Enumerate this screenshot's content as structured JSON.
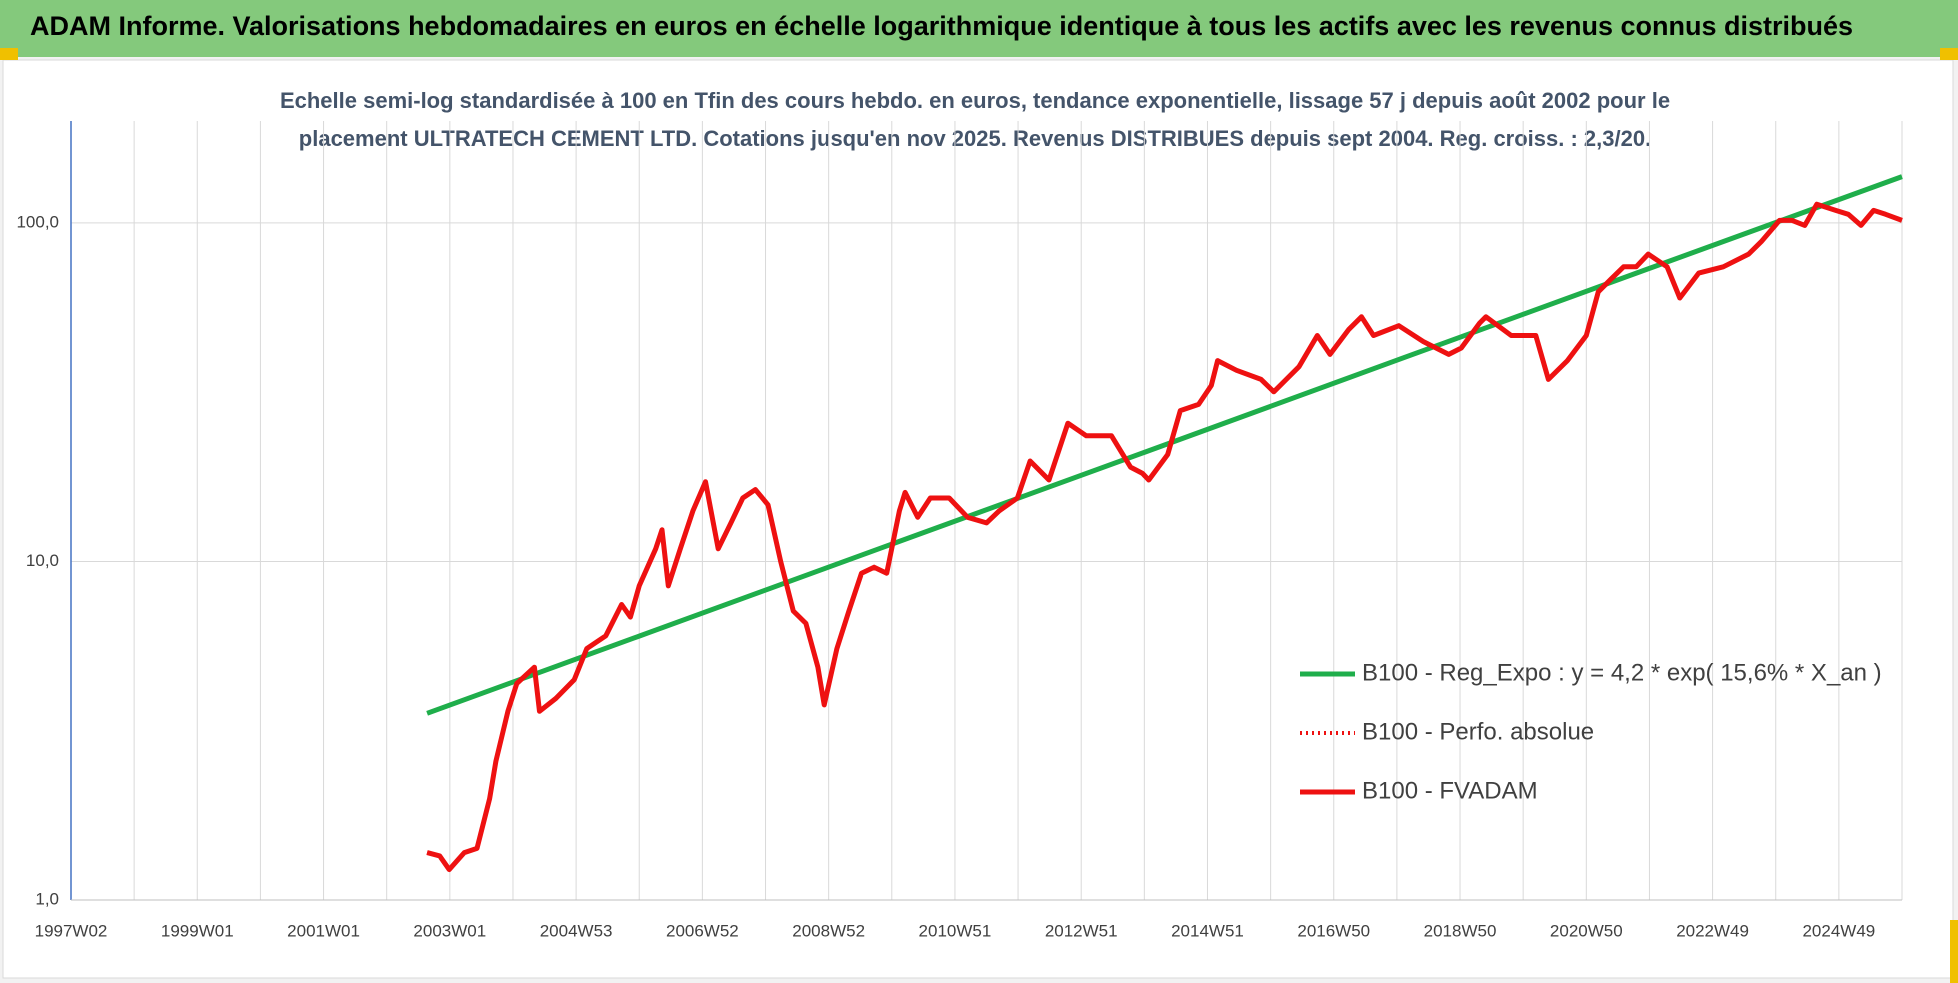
{
  "header": {
    "title": "ADAM Informe. Valorisations hebdomadaires en euros en échelle logarithmique identique à tous les actifs avec les revenus connus distribués"
  },
  "chart_data": {
    "type": "line",
    "subtitle": [
      "Echelle semi-log standardisée à 100 en Tfin des cours hebdo. en euros, tendance exponentielle, lissage 57 j depuis août 2002 pour le",
      "placement ULTRATECH CEMENT LTD. Cotations jusqu'en nov 2025. Revenus DISTRIBUES depuis sept 2004. Reg. croiss. : 2,3/20."
    ],
    "log_scale": true,
    "grid": true,
    "legend": "right",
    "xlim": [
      1997,
      2026
    ],
    "ylim": [
      1,
      200
    ],
    "xticks": [
      {
        "value": 1997,
        "label": "1997W02"
      },
      {
        "value": 1999,
        "label": "1999W01"
      },
      {
        "value": 2001,
        "label": "2001W01"
      },
      {
        "value": 2003,
        "label": "2003W01"
      },
      {
        "value": 2005,
        "label": "2004W53"
      },
      {
        "value": 2007,
        "label": "2006W52"
      },
      {
        "value": 2009,
        "label": "2008W52"
      },
      {
        "value": 2011,
        "label": "2010W51"
      },
      {
        "value": 2013,
        "label": "2012W51"
      },
      {
        "value": 2015,
        "label": "2014W51"
      },
      {
        "value": 2017,
        "label": "2016W50"
      },
      {
        "value": 2019,
        "label": "2018W50"
      },
      {
        "value": 2021,
        "label": "2020W50"
      },
      {
        "value": 2023,
        "label": "2022W49"
      },
      {
        "value": 2025,
        "label": "2024W49"
      }
    ],
    "x_gridlines": [
      1998,
      2000,
      2002,
      2004,
      2006,
      2008,
      2010,
      2012,
      2014,
      2016,
      2018,
      2020,
      2022,
      2024,
      2026
    ],
    "yticks": [
      {
        "value": 1,
        "label": "1,0"
      },
      {
        "value": 10,
        "label": "10,0"
      },
      {
        "value": 100,
        "label": "100,0"
      }
    ],
    "series": [
      {
        "name": "B100 - Reg_Expo : y = 4,2 * exp( 15,6% *  X_an )",
        "color": "#1fae4b",
        "style": "solid",
        "x": [
          2002.64,
          2006,
          2010,
          2014,
          2018,
          2022,
          2026
        ],
        "values": [
          3.56,
          6.02,
          11.25,
          21.0,
          39.3,
          73.4,
          137
        ]
      },
      {
        "name": "B100 - Perfo. absolue",
        "color": "#ee1111",
        "style": "dotted",
        "x": [
          2002.64,
          2002.84,
          2002.99,
          2003.23,
          2003.43,
          2003.63,
          2003.73,
          2003.92,
          2004.06,
          2004.34,
          2004.42,
          2004.68,
          2004.97,
          2005.17,
          2005.47,
          2005.72,
          2005.86,
          2006.0,
          2006.26,
          2006.36,
          2006.46,
          2006.65,
          2006.85,
          2007.05,
          2007.25,
          2007.45,
          2007.64,
          2007.84,
          2008.04,
          2008.24,
          2008.44,
          2008.64,
          2008.83,
          2008.93,
          2009.13,
          2009.32,
          2009.52,
          2009.72,
          2009.92,
          2010.12,
          2010.21,
          2010.41,
          2010.61,
          2010.91,
          2011.2,
          2011.5,
          2011.7,
          2011.99,
          2012.19,
          2012.49,
          2012.79,
          2013.08,
          2013.48,
          2013.78,
          2013.97,
          2014.07,
          2014.37,
          2014.57,
          2014.86,
          2015.06,
          2015.16,
          2015.46,
          2015.85,
          2016.05,
          2016.45,
          2016.74,
          2016.94,
          2017.24,
          2017.44,
          2017.63,
          2018.03,
          2018.42,
          2018.82,
          2019.02,
          2019.31,
          2019.41,
          2019.81,
          2020.2,
          2020.4,
          2020.7,
          2021.0,
          2021.19,
          2021.39,
          2021.59,
          2021.79,
          2021.98,
          2022.28,
          2022.48,
          2022.78,
          2023.17,
          2023.57,
          2023.77,
          2024.06,
          2024.26,
          2024.46,
          2024.65,
          2024.95,
          2025.15,
          2025.35,
          2025.55,
          2025.74,
          2026.0
        ],
        "values": [
          1.38,
          1.35,
          1.23,
          1.38,
          1.42,
          1.99,
          2.57,
          3.61,
          4.36,
          4.87,
          3.61,
          3.94,
          4.47,
          5.53,
          6.03,
          7.46,
          6.85,
          8.47,
          10.9,
          12.4,
          8.47,
          10.9,
          14.1,
          17.2,
          10.9,
          12.97,
          15.4,
          16.3,
          14.7,
          10.0,
          7.14,
          6.56,
          4.87,
          3.77,
          5.53,
          7.14,
          9.23,
          9.62,
          9.23,
          14.1,
          16.0,
          13.5,
          15.4,
          15.4,
          13.5,
          13.0,
          14.1,
          15.4,
          19.8,
          17.4,
          25.6,
          23.5,
          23.5,
          19.0,
          18.2,
          17.4,
          20.7,
          27.9,
          29.1,
          33.1,
          39.2,
          36.7,
          34.5,
          31.7,
          37.6,
          46.5,
          40.9,
          48.5,
          52.8,
          46.5,
          49.7,
          44.6,
          40.9,
          42.7,
          50.6,
          52.8,
          46.5,
          46.5,
          34.5,
          39.2,
          46.5,
          62.6,
          68.2,
          74.2,
          74.2,
          80.9,
          74.2,
          60.0,
          71.1,
          74.2,
          80.9,
          88.0,
          101.7,
          101.7,
          98.3,
          113.6,
          108.9,
          106,
          98.3,
          108.9,
          106,
          101.7
        ]
      },
      {
        "name": "B100 - FVADAM",
        "color": "#ee1111",
        "style": "solid",
        "x": [
          2002.64,
          2002.84,
          2002.99,
          2003.23,
          2003.43,
          2003.63,
          2003.73,
          2003.92,
          2004.06,
          2004.34,
          2004.42,
          2004.68,
          2004.97,
          2005.17,
          2005.47,
          2005.72,
          2005.86,
          2006.0,
          2006.26,
          2006.36,
          2006.46,
          2006.65,
          2006.85,
          2007.05,
          2007.25,
          2007.45,
          2007.64,
          2007.84,
          2008.04,
          2008.24,
          2008.44,
          2008.64,
          2008.83,
          2008.93,
          2009.13,
          2009.32,
          2009.52,
          2009.72,
          2009.92,
          2010.12,
          2010.21,
          2010.41,
          2010.61,
          2010.91,
          2011.2,
          2011.5,
          2011.7,
          2011.99,
          2012.19,
          2012.49,
          2012.79,
          2013.08,
          2013.48,
          2013.78,
          2013.97,
          2014.07,
          2014.37,
          2014.57,
          2014.86,
          2015.06,
          2015.16,
          2015.46,
          2015.85,
          2016.05,
          2016.45,
          2016.74,
          2016.94,
          2017.24,
          2017.44,
          2017.63,
          2018.03,
          2018.42,
          2018.82,
          2019.02,
          2019.31,
          2019.41,
          2019.81,
          2020.2,
          2020.4,
          2020.7,
          2021.0,
          2021.19,
          2021.39,
          2021.59,
          2021.79,
          2021.98,
          2022.28,
          2022.48,
          2022.78,
          2023.17,
          2023.57,
          2023.77,
          2024.06,
          2024.26,
          2024.46,
          2024.65,
          2024.95,
          2025.15,
          2025.35,
          2025.55,
          2025.74,
          2026.0
        ],
        "values": [
          1.38,
          1.35,
          1.23,
          1.38,
          1.42,
          1.99,
          2.57,
          3.61,
          4.36,
          4.87,
          3.61,
          3.94,
          4.47,
          5.53,
          6.03,
          7.46,
          6.85,
          8.47,
          10.9,
          12.4,
          8.47,
          10.9,
          14.1,
          17.2,
          10.9,
          12.97,
          15.4,
          16.3,
          14.7,
          10.0,
          7.14,
          6.56,
          4.87,
          3.77,
          5.53,
          7.14,
          9.23,
          9.62,
          9.23,
          14.1,
          16.0,
          13.5,
          15.4,
          15.4,
          13.5,
          13.0,
          14.1,
          15.4,
          19.8,
          17.4,
          25.6,
          23.5,
          23.5,
          19.0,
          18.2,
          17.4,
          20.7,
          27.9,
          29.1,
          33.1,
          39.2,
          36.7,
          34.5,
          31.7,
          37.6,
          46.5,
          40.9,
          48.5,
          52.8,
          46.5,
          49.7,
          44.6,
          40.9,
          42.7,
          50.6,
          52.8,
          46.5,
          46.5,
          34.5,
          39.2,
          46.5,
          62.6,
          68.2,
          74.2,
          74.2,
          80.9,
          74.2,
          60.0,
          71.1,
          74.2,
          80.9,
          88.0,
          101.7,
          101.7,
          98.3,
          113.6,
          108.9,
          106,
          98.3,
          108.9,
          106,
          101.7
        ]
      }
    ]
  }
}
